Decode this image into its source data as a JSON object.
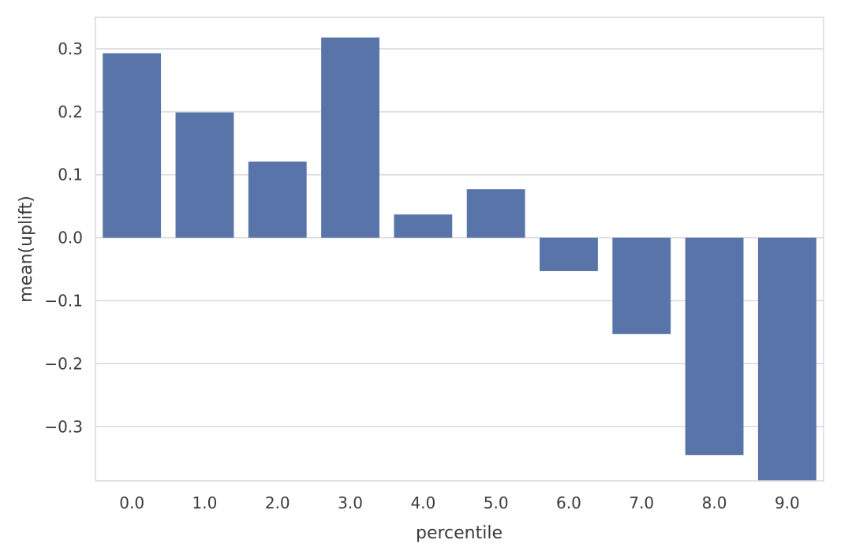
{
  "chart_data": {
    "type": "bar",
    "categories": [
      "0.0",
      "1.0",
      "2.0",
      "3.0",
      "4.0",
      "5.0",
      "6.0",
      "7.0",
      "8.0",
      "9.0"
    ],
    "values": [
      0.293,
      0.199,
      0.121,
      0.318,
      0.037,
      0.077,
      -0.053,
      -0.153,
      -0.345,
      -0.39
    ],
    "xlabel": "percentile",
    "ylabel": "mean(uplift)",
    "ylim": [
      -0.386,
      0.35
    ],
    "yticks": [
      0.3,
      0.2,
      0.1,
      0.0,
      -0.1,
      -0.2,
      -0.3
    ],
    "ytick_labels": [
      "0.3",
      "0.2",
      "0.1",
      "0.0",
      "−0.1",
      "−0.2",
      "−0.3"
    ],
    "grid": "horizontal",
    "bar_color": "#5874a8",
    "grid_color": "#d9d9dd",
    "frame_color": "#d9d9dd"
  }
}
